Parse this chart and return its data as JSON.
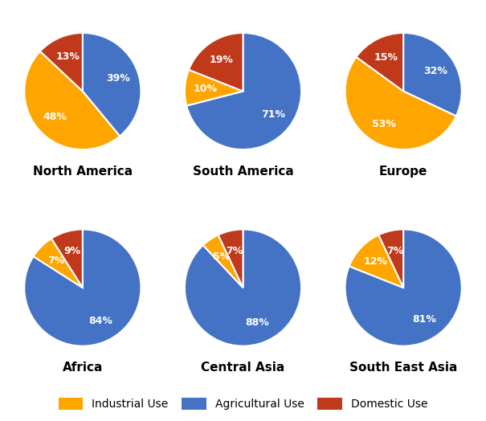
{
  "regions": [
    "North America",
    "South America",
    "Europe",
    "Africa",
    "Central Asia",
    "South East Asia"
  ],
  "data": {
    "North America": [
      39,
      48,
      13
    ],
    "South America": [
      71,
      10,
      19
    ],
    "Europe": [
      32,
      53,
      15
    ],
    "Africa": [
      84,
      7,
      9
    ],
    "Central Asia": [
      88,
      5,
      7
    ],
    "South East Asia": [
      81,
      12,
      7
    ]
  },
  "colors": [
    "#4472C4",
    "#FFA500",
    "#C0391B"
  ],
  "label_order": [
    "Agricultural",
    "Industrial",
    "Domestic"
  ],
  "legend_labels": [
    "Industrial Use",
    "Agricultural Use",
    "Domestic Use"
  ],
  "legend_colors": [
    "#FFA500",
    "#4472C4",
    "#C0391B"
  ],
  "text_color": "#000000",
  "bg_color": "#FFFFFF",
  "label_fontsize": 9,
  "title_fontsize": 11,
  "start_angles": {
    "North America": 90,
    "South America": 90,
    "Europe": 90,
    "Africa": 90,
    "Central Asia": 90,
    "South East Asia": 90
  }
}
